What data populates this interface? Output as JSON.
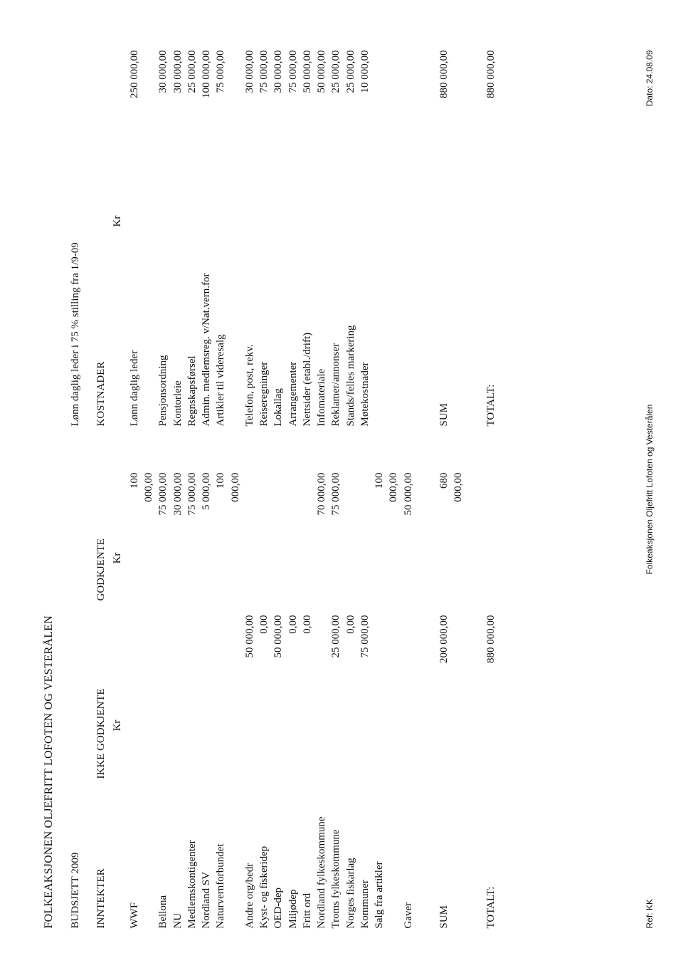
{
  "title": "FOLKEAKSJONEN OLJEFRITT LOFOTEN OG VESTERÅLEN",
  "subtitle": "BUDSJETT 2009",
  "right_note": "Lønn daglig leder i 75 % stilling fra 1/9-09",
  "headers": {
    "inntekter": "INNTEKTER",
    "ikke_godkjente": "IKKE GODKJENTE",
    "godkjente": "GODKJENTE",
    "kostnader": "KOSTNADER",
    "kr": "Kr"
  },
  "income": [
    {
      "label": "WWF",
      "ikke": "",
      "god": "100 000,00"
    },
    {
      "label": "Bellona",
      "ikke": "",
      "god": "75 000,00"
    },
    {
      "label": "NU",
      "ikke": "",
      "god": "30 000,00"
    },
    {
      "label": "Medlemskontigenter",
      "ikke": "",
      "god": "75 000,00"
    },
    {
      "label": "Nordland SV",
      "ikke": "",
      "god": "5 000,00"
    },
    {
      "label": "Naturvernforbundet",
      "ikke": "",
      "god": "100 000,00"
    },
    {
      "label": "Andre org/bedr",
      "ikke": "50 000,00",
      "god": ""
    },
    {
      "label": "Kyst- og fiskeridep",
      "ikke": "0,00",
      "god": ""
    },
    {
      "label": "OED-dep",
      "ikke": "50 000,00",
      "god": ""
    },
    {
      "label": "Miljødep",
      "ikke": "0,00",
      "god": ""
    },
    {
      "label": "Fritt ord",
      "ikke": "0,00",
      "god": ""
    },
    {
      "label": "Nordland fylkeskommune",
      "ikke": "",
      "god": "70 000,00"
    },
    {
      "label": "Troms fylkeskommune",
      "ikke": "25 000,00",
      "god": "75 000,00"
    },
    {
      "label": "Norges fiskarlag",
      "ikke": "0,00",
      "god": ""
    },
    {
      "label": "Kommuner",
      "ikke": "75 000,00",
      "god": ""
    },
    {
      "label": "Salg fra artikler",
      "ikke": "",
      "god": "100 000,00"
    },
    {
      "label": "Gaver",
      "ikke": "",
      "god": "50 000,00"
    }
  ],
  "costs": [
    {
      "label": "Lønn daglig leder",
      "kr": "250 000,00"
    },
    {
      "label": "Pensjonsordning",
      "kr": "30 000,00"
    },
    {
      "label": "Kontorleie",
      "kr": "30 000,00"
    },
    {
      "label": "Regnskapsførsel",
      "kr": "25 000,00"
    },
    {
      "label": "Admin. medlemsreg. v/Nat.vern.for",
      "kr": "100 000,00"
    },
    {
      "label": "Artikler til videresalg",
      "kr": "75 000,00"
    },
    {
      "label": "Telefon, post, rekv.",
      "kr": "30 000,00"
    },
    {
      "label": "Reiseregninger",
      "kr": "75 000,00"
    },
    {
      "label": "Lokallag",
      "kr": "30 000,00"
    },
    {
      "label": "Arrangementer",
      "kr": "75 000,00"
    },
    {
      "label": "Nettsider (etabl./drift)",
      "kr": "50 000,00"
    },
    {
      "label": "Infomateriale",
      "kr": "50 000,00"
    },
    {
      "label": "Reklamer/annonser",
      "kr": "25 000,00"
    },
    {
      "label": "Stands/felles markering",
      "kr": "25 000,00"
    },
    {
      "label": "Møtekostnader",
      "kr": "10 000,00"
    }
  ],
  "sum": {
    "label": "SUM",
    "ikke": "200 000,00",
    "god": "680 000,00",
    "kost_label": "SUM",
    "kr": "880 000,00"
  },
  "totalt": {
    "label": "TOTALT:",
    "val": "880 000,00",
    "kost_label": "TOTALT:",
    "kr": "880 000,00"
  },
  "footer": {
    "ref": "Ref: KK",
    "center": "Folkeaksjonen Oljefritt Lofoten og Vesterålen",
    "date": "Dato: 24.08.09"
  }
}
